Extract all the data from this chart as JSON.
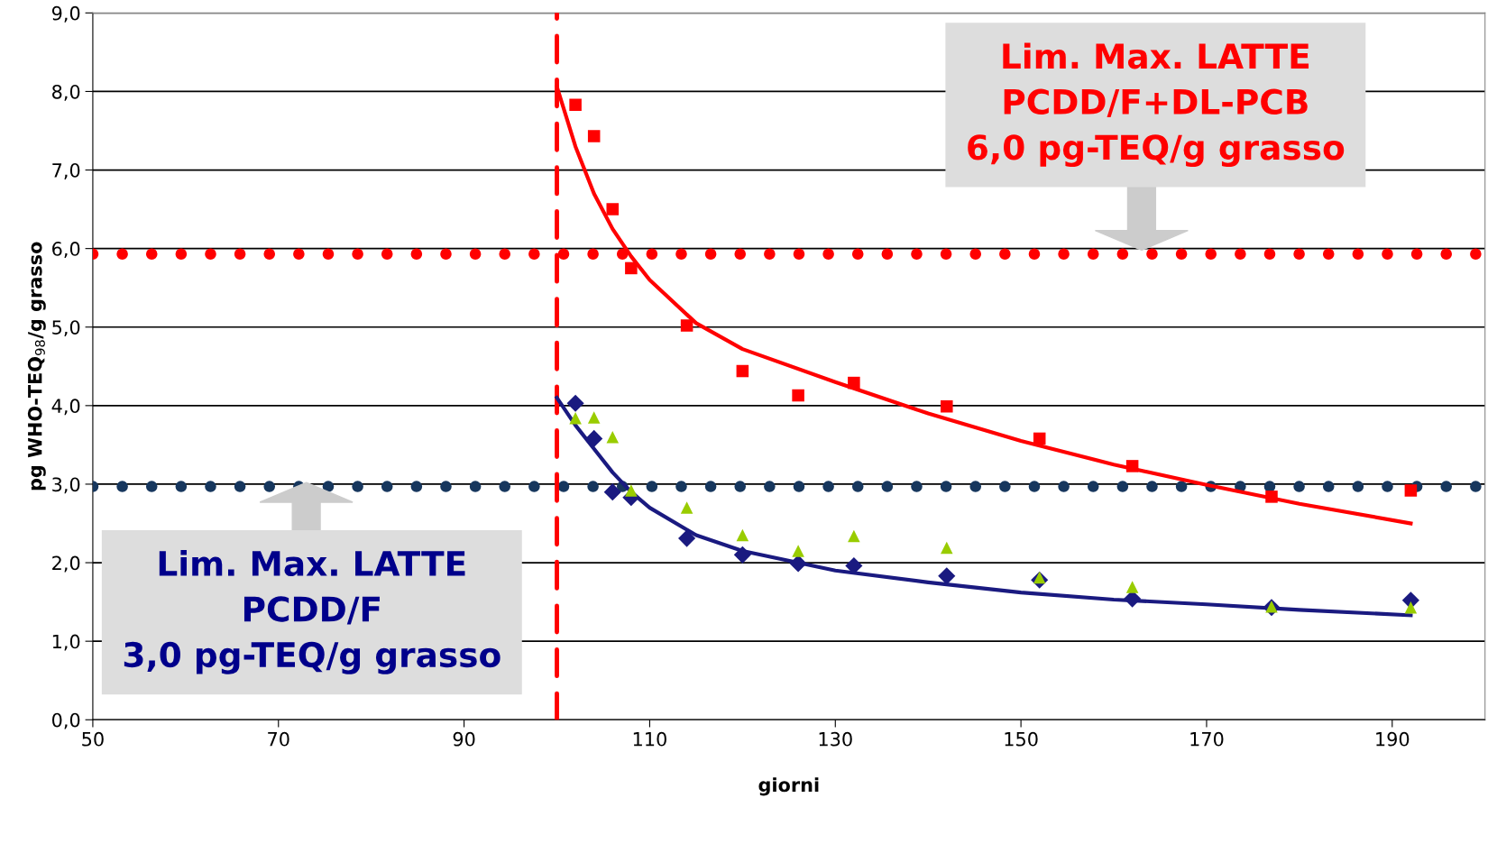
{
  "chart_data": {
    "type": "scatter",
    "xlabel": "giorni",
    "ylabel": "pg WHO-TEQ$_{98}$/g grasso",
    "xlim": [
      50,
      200
    ],
    "xticks": [
      50,
      70,
      90,
      110,
      130,
      150,
      170,
      190
    ],
    "ylim": [
      0,
      9
    ],
    "yticks": [
      {
        "value": 0,
        "label": "0,0"
      },
      {
        "value": 1,
        "label": "1,0"
      },
      {
        "value": 2,
        "label": "2,0"
      },
      {
        "value": 3,
        "label": "3,0"
      },
      {
        "value": 4,
        "label": "4,0"
      },
      {
        "value": 5,
        "label": "5,0"
      },
      {
        "value": 6,
        "label": "6,0"
      },
      {
        "value": 7,
        "label": "7,0"
      },
      {
        "value": 8,
        "label": "8,0"
      },
      {
        "value": 9,
        "label": "9,0"
      }
    ],
    "grid": "y",
    "series": [
      {
        "type": "scatter",
        "marker": "square",
        "color": "#ff0000",
        "x": [
          102,
          104,
          106,
          108,
          114,
          120,
          126,
          132,
          142,
          152,
          162,
          177,
          192
        ],
        "values": [
          7.83,
          7.43,
          6.5,
          5.75,
          5.02,
          4.44,
          4.13,
          4.29,
          3.99,
          3.58,
          3.23,
          2.84,
          2.92
        ]
      },
      {
        "type": "scatter",
        "marker": "diamond",
        "color": "#1a1a80",
        "x": [
          102,
          104,
          106,
          108,
          114,
          120,
          126,
          132,
          142,
          152,
          162,
          177,
          192
        ],
        "values": [
          4.03,
          3.58,
          2.9,
          2.83,
          2.31,
          2.1,
          1.99,
          1.96,
          1.83,
          1.78,
          1.54,
          1.43,
          1.52
        ]
      },
      {
        "type": "scatter",
        "marker": "triangle",
        "color": "#99cc00",
        "x": [
          102,
          104,
          106,
          108,
          114,
          120,
          126,
          132,
          142,
          152,
          162,
          177,
          192
        ],
        "values": [
          3.84,
          3.85,
          3.6,
          2.92,
          2.7,
          2.35,
          2.15,
          2.34,
          2.19,
          1.81,
          1.69,
          1.44,
          1.43
        ]
      },
      {
        "type": "line",
        "color": "#ff0000",
        "x": [
          100,
          102,
          104,
          106,
          108,
          110,
          115,
          120,
          130,
          140,
          150,
          160,
          170,
          180,
          192
        ],
        "values": [
          8.06,
          7.3,
          6.7,
          6.25,
          5.9,
          5.6,
          5.05,
          4.72,
          4.3,
          3.9,
          3.55,
          3.25,
          2.99,
          2.75,
          2.5
        ]
      },
      {
        "type": "line",
        "color": "#1a1a80",
        "x": [
          100,
          102,
          104,
          106,
          108,
          110,
          115,
          120,
          130,
          140,
          150,
          160,
          170,
          180,
          192
        ],
        "values": [
          4.1,
          3.75,
          3.45,
          3.15,
          2.9,
          2.7,
          2.35,
          2.15,
          1.9,
          1.75,
          1.62,
          1.53,
          1.47,
          1.4,
          1.33
        ]
      }
    ],
    "ref_lines": [
      {
        "axis": "y",
        "value": 5.93,
        "color": "#ff0000",
        "line_style": "dotted"
      },
      {
        "axis": "y",
        "value": 2.97,
        "color": "#17375e",
        "line_style": "dotted"
      },
      {
        "axis": "x",
        "value": 100,
        "color": "#ff0000",
        "line_style": "dashed"
      }
    ],
    "annotations": [
      {
        "text": "Lim. Max. LATTE\nPCDD/F+DL-PCB\n6,0 pg-TEQ/g grasso",
        "x": 163,
        "y": 5.93
      },
      {
        "text": "Lim. Max. LATTE\nPCDD/F\n3,0 pg-TEQ/g grasso",
        "x": 73,
        "y": 2.97
      }
    ]
  }
}
